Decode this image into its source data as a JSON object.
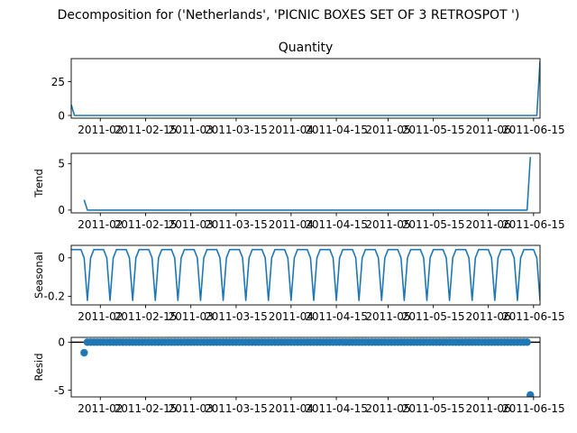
{
  "figure": {
    "suptitle": "Decomposition for ('Netherlands', 'PICNIC BOXES SET OF 3 RETROSPOT ')"
  },
  "colors": {
    "series": "#1f77b4",
    "axis": "#000000"
  },
  "date_tick_labels": [
    "2011-02",
    "2011-02-15",
    "2011-03",
    "2011-03-15",
    "2011-04",
    "2011-04-15",
    "2011-05",
    "2011-05-15",
    "2011-06",
    "2011-06-15"
  ],
  "chart_data": [
    {
      "type": "line",
      "title": "Quantity",
      "ylabel": "",
      "ylim": [
        -2,
        42
      ],
      "yticks": [
        0,
        25
      ],
      "xlim": [
        "2011-01-23",
        "2011-06-17"
      ],
      "x": [
        "2011-01-23",
        "2011-01-24",
        "2011-06-16",
        "2011-06-17"
      ],
      "values": [
        8,
        0,
        0,
        40
      ]
    },
    {
      "type": "line",
      "title": "",
      "ylabel": "Trend",
      "ylim": [
        -0.3,
        6.1
      ],
      "yticks": [
        0,
        5
      ],
      "xlim": [
        "2011-01-23",
        "2011-06-17"
      ],
      "x": [
        "2011-01-27",
        "2011-01-28",
        "2011-06-13",
        "2011-06-14"
      ],
      "values": [
        1.1,
        0,
        0,
        5.7
      ]
    },
    {
      "type": "line",
      "title": "",
      "ylabel": "Seasonal",
      "ylim": [
        -0.245,
        0.065
      ],
      "yticks": [
        0.0,
        -0.2
      ],
      "xlim": [
        "2011-01-23",
        "2011-06-17"
      ],
      "period_days": 7,
      "pattern": [
        0.043,
        0.043,
        0.043,
        0.043,
        0.0,
        -0.222,
        0.0
      ]
    },
    {
      "type": "scatter",
      "title": "",
      "ylabel": "Resid",
      "ylim": [
        -5.7,
        0.5
      ],
      "yticks": [
        0,
        -5
      ],
      "xlim": [
        "2011-01-23",
        "2011-06-17"
      ],
      "baseline": 0,
      "x_start": "2011-01-27",
      "x_end": "2011-06-14",
      "default_value": 0,
      "outliers": [
        {
          "x": "2011-01-27",
          "y": -1.1
        },
        {
          "x": "2011-06-14",
          "y": -5.5
        }
      ]
    }
  ]
}
